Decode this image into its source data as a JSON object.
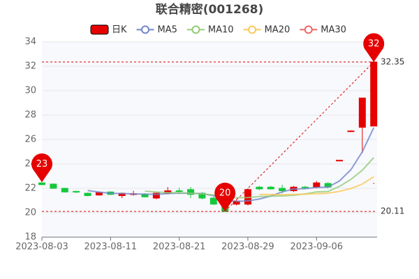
{
  "chart_data": {
    "type": "candlestick",
    "title": "联合精密(001268)",
    "categories": [
      "2023-08-03",
      null,
      null,
      null,
      null,
      null,
      "2023-08-11",
      null,
      null,
      null,
      null,
      null,
      "2023-08-21",
      null,
      null,
      null,
      null,
      null,
      "2023-08-29",
      null,
      null,
      null,
      null,
      null,
      "2023-09-06",
      null,
      null,
      null,
      null,
      null
    ],
    "ylim": [
      18,
      34
    ],
    "yticks": [
      18,
      20,
      22,
      24,
      26,
      28,
      30,
      32,
      34
    ],
    "grid": true,
    "up_color": "#e60000",
    "down_color": "#14c83c",
    "series": [
      {
        "name": "日K",
        "type": "candlestick",
        "color": "#e60000",
        "open": [
          22.45,
          22.35,
          22.0,
          21.75,
          21.6,
          21.45,
          21.7,
          21.4,
          21.5,
          21.5,
          21.2,
          21.6,
          21.8,
          21.9,
          21.6,
          21.2,
          20.6,
          20.7,
          20.7,
          22.1,
          22.1,
          22.0,
          21.8,
          22.1,
          22.1,
          22.4,
          24.3,
          26.7,
          27.0,
          27.1
        ],
        "close": [
          22.3,
          22.0,
          21.7,
          21.7,
          21.4,
          21.65,
          21.5,
          21.6,
          21.55,
          21.3,
          21.6,
          21.8,
          21.75,
          21.5,
          21.2,
          20.7,
          20.1,
          20.95,
          21.9,
          21.95,
          21.95,
          21.8,
          22.1,
          22.05,
          22.45,
          22.1,
          24.3,
          26.7,
          29.4,
          32.35
        ],
        "low": [
          22.25,
          21.95,
          21.65,
          21.6,
          21.35,
          21.4,
          21.45,
          21.2,
          21.4,
          21.25,
          21.1,
          21.5,
          21.6,
          21.2,
          21.1,
          20.65,
          20.11,
          20.6,
          20.6,
          21.85,
          21.9,
          21.6,
          21.7,
          21.95,
          22.0,
          22.0,
          24.3,
          26.7,
          24.9,
          27.1
        ],
        "high": [
          22.5,
          22.4,
          22.05,
          21.8,
          21.65,
          21.7,
          21.75,
          21.65,
          21.8,
          21.6,
          21.65,
          22.1,
          22.05,
          22.1,
          21.7,
          21.3,
          20.7,
          21.1,
          22.0,
          22.2,
          22.2,
          22.3,
          22.2,
          22.2,
          22.6,
          22.5,
          24.3,
          26.75,
          29.4,
          32.35
        ]
      },
      {
        "name": "MA5",
        "type": "line",
        "color": "#6f86c8",
        "values": [
          null,
          null,
          null,
          null,
          21.82,
          21.69,
          21.59,
          21.57,
          21.54,
          21.52,
          21.51,
          21.57,
          21.6,
          21.59,
          21.57,
          21.39,
          21.05,
          20.93,
          20.97,
          21.12,
          21.37,
          21.71,
          21.94,
          21.97,
          22.07,
          22.1,
          22.6,
          23.52,
          24.99,
          26.97
        ]
      },
      {
        "name": "MA10",
        "type": "line",
        "color": "#91cc75",
        "values": [
          null,
          null,
          null,
          null,
          null,
          null,
          null,
          null,
          null,
          21.77,
          21.7,
          21.65,
          21.64,
          21.6,
          21.55,
          21.45,
          21.29,
          21.22,
          21.24,
          21.33,
          21.36,
          21.38,
          21.43,
          21.54,
          21.71,
          21.74,
          22.16,
          22.73,
          23.48,
          24.52
        ]
      },
      {
        "name": "MA20",
        "type": "line",
        "color": "#fac858",
        "values": [
          null,
          null,
          null,
          null,
          null,
          null,
          null,
          null,
          null,
          null,
          null,
          null,
          null,
          null,
          null,
          null,
          null,
          null,
          null,
          21.5,
          21.5,
          21.48,
          21.5,
          21.52,
          21.56,
          21.6,
          21.75,
          21.98,
          22.35,
          22.95
        ]
      },
      {
        "name": "MA30",
        "type": "line",
        "color": "#ee6666",
        "values": [
          null,
          null,
          null,
          null,
          null,
          null,
          null,
          null,
          null,
          null,
          null,
          null,
          null,
          null,
          null,
          null,
          null,
          null,
          null,
          null,
          null,
          null,
          null,
          null,
          null,
          null,
          null,
          null,
          null,
          22.4
        ]
      }
    ],
    "mark_points": [
      {
        "value": 20,
        "at": "low"
      },
      {
        "value": 23,
        "at": "high"
      },
      {
        "value": 32,
        "at": "high"
      }
    ],
    "mark_lines": [
      32.35,
      20.11
    ]
  }
}
